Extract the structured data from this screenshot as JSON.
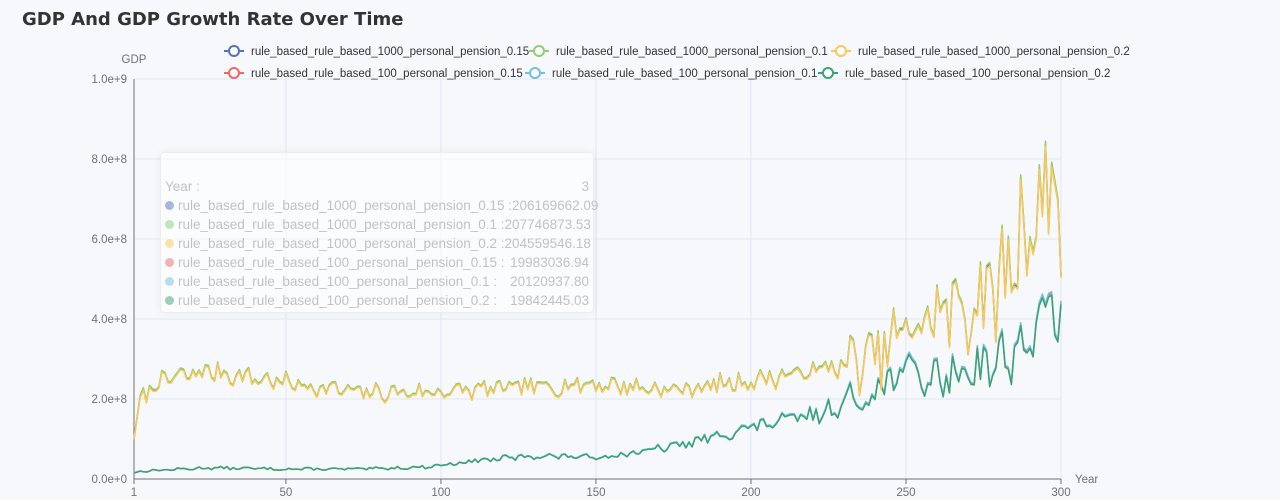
{
  "chart_data": {
    "type": "line",
    "title": "GDP And GDP Growth Rate Over Time",
    "xlabel": "Year",
    "ylabel": "GDP",
    "xlim": [
      1,
      300
    ],
    "ylim": [
      0,
      1000000000
    ],
    "x_ticks": [
      1,
      50,
      100,
      150,
      200,
      250,
      300
    ],
    "y_ticks": [
      "0.0e+0",
      "2.0e+8",
      "4.0e+8",
      "6.0e+8",
      "8.0e+8",
      "1.0e+9"
    ],
    "grid": true,
    "legend_position": "top-right",
    "series": [
      {
        "name": "rule_based_rule_based_1000_personal_pension_0.15",
        "color": "#5470c6",
        "group": "1000",
        "offset": 1.0,
        "keypoints": [
          [
            1,
            100000000
          ],
          [
            3,
            206169662.09
          ],
          [
            10,
            245000000
          ],
          [
            25,
            270000000
          ],
          [
            50,
            240000000
          ],
          [
            75,
            215000000
          ],
          [
            100,
            218000000
          ],
          [
            125,
            228000000
          ],
          [
            150,
            238000000
          ],
          [
            175,
            222000000
          ],
          [
            200,
            245000000
          ],
          [
            220,
            270000000
          ],
          [
            240,
            300000000
          ],
          [
            250,
            370000000
          ],
          [
            260,
            410000000
          ],
          [
            270,
            440000000
          ],
          [
            280,
            470000000
          ],
          [
            287,
            620000000
          ],
          [
            292,
            660000000
          ],
          [
            295,
            700000000
          ],
          [
            298,
            820000000
          ],
          [
            300,
            615000000
          ]
        ]
      },
      {
        "name": "rule_based_rule_based_1000_personal_pension_0.1",
        "color": "#91cc75",
        "group": "1000",
        "offset": 1.008,
        "keypoints": [
          [
            1,
            100000000
          ],
          [
            3,
            207746873.53
          ],
          [
            10,
            245000000
          ],
          [
            25,
            270000000
          ],
          [
            50,
            240000000
          ],
          [
            75,
            215000000
          ],
          [
            100,
            218000000
          ],
          [
            125,
            228000000
          ],
          [
            150,
            238000000
          ],
          [
            175,
            222000000
          ],
          [
            200,
            245000000
          ],
          [
            220,
            270000000
          ],
          [
            240,
            300000000
          ],
          [
            250,
            370000000
          ],
          [
            260,
            410000000
          ],
          [
            270,
            440000000
          ],
          [
            280,
            470000000
          ],
          [
            287,
            620000000
          ],
          [
            292,
            660000000
          ],
          [
            295,
            700000000
          ],
          [
            298,
            820000000
          ],
          [
            300,
            615000000
          ]
        ]
      },
      {
        "name": "rule_based_rule_based_1000_personal_pension_0.2",
        "color": "#fac858",
        "group": "1000",
        "offset": 0.992,
        "keypoints": [
          [
            1,
            100000000
          ],
          [
            3,
            204559546.18
          ],
          [
            10,
            245000000
          ],
          [
            25,
            270000000
          ],
          [
            50,
            240000000
          ],
          [
            75,
            215000000
          ],
          [
            100,
            218000000
          ],
          [
            125,
            228000000
          ],
          [
            150,
            238000000
          ],
          [
            175,
            222000000
          ],
          [
            200,
            245000000
          ],
          [
            220,
            270000000
          ],
          [
            240,
            300000000
          ],
          [
            250,
            370000000
          ],
          [
            260,
            410000000
          ],
          [
            270,
            440000000
          ],
          [
            280,
            470000000
          ],
          [
            287,
            620000000
          ],
          [
            292,
            660000000
          ],
          [
            295,
            700000000
          ],
          [
            298,
            820000000
          ],
          [
            300,
            615000000
          ]
        ]
      },
      {
        "name": "rule_based_rule_based_100_personal_pension_0.15",
        "color": "#ee6666",
        "group": "100",
        "offset": 1.0,
        "keypoints": [
          [
            1,
            15000000
          ],
          [
            3,
            19983036.94
          ],
          [
            25,
            28000000
          ],
          [
            50,
            25000000
          ],
          [
            75,
            25000000
          ],
          [
            95,
            30000000
          ],
          [
            110,
            45000000
          ],
          [
            130,
            58000000
          ],
          [
            150,
            55000000
          ],
          [
            165,
            68000000
          ],
          [
            180,
            90000000
          ],
          [
            200,
            130000000
          ],
          [
            220,
            160000000
          ],
          [
            235,
            200000000
          ],
          [
            240,
            230000000
          ],
          [
            250,
            270000000
          ],
          [
            260,
            250000000
          ],
          [
            270,
            280000000
          ],
          [
            280,
            300000000
          ],
          [
            290,
            350000000
          ],
          [
            295,
            400000000
          ],
          [
            300,
            470000000
          ]
        ]
      },
      {
        "name": "rule_based_rule_based_100_personal_pension_0.1",
        "color": "#73c0de",
        "group": "100",
        "offset": 1.01,
        "keypoints": [
          [
            1,
            15000000
          ],
          [
            3,
            20120937.8
          ],
          [
            25,
            28000000
          ],
          [
            50,
            25000000
          ],
          [
            75,
            25000000
          ],
          [
            95,
            30000000
          ],
          [
            110,
            45000000
          ],
          [
            130,
            58000000
          ],
          [
            150,
            55000000
          ],
          [
            165,
            68000000
          ],
          [
            180,
            90000000
          ],
          [
            200,
            130000000
          ],
          [
            220,
            160000000
          ],
          [
            235,
            200000000
          ],
          [
            240,
            230000000
          ],
          [
            250,
            270000000
          ],
          [
            260,
            250000000
          ],
          [
            270,
            280000000
          ],
          [
            280,
            300000000
          ],
          [
            290,
            350000000
          ],
          [
            295,
            400000000
          ],
          [
            300,
            470000000
          ]
        ]
      },
      {
        "name": "rule_based_rule_based_100_personal_pension_0.2",
        "color": "#3ba272",
        "group": "100",
        "offset": 0.99,
        "keypoints": [
          [
            1,
            15000000
          ],
          [
            3,
            19842445.03
          ],
          [
            25,
            28000000
          ],
          [
            50,
            25000000
          ],
          [
            75,
            25000000
          ],
          [
            95,
            30000000
          ],
          [
            110,
            45000000
          ],
          [
            130,
            58000000
          ],
          [
            150,
            55000000
          ],
          [
            165,
            68000000
          ],
          [
            180,
            90000000
          ],
          [
            200,
            130000000
          ],
          [
            220,
            160000000
          ],
          [
            235,
            200000000
          ],
          [
            240,
            230000000
          ],
          [
            250,
            270000000
          ],
          [
            260,
            250000000
          ],
          [
            270,
            280000000
          ],
          [
            280,
            300000000
          ],
          [
            290,
            350000000
          ],
          [
            295,
            400000000
          ],
          [
            300,
            470000000
          ]
        ]
      }
    ]
  },
  "tooltip": {
    "header_label": "Year :",
    "header_value": "3",
    "rows": [
      {
        "name": "rule_based_rule_based_1000_personal_pension_0.15 :",
        "value": "206169662.09",
        "color": "#5470c6"
      },
      {
        "name": "rule_based_rule_based_1000_personal_pension_0.1 :",
        "value": "207746873.53",
        "color": "#91cc75"
      },
      {
        "name": "rule_based_rule_based_1000_personal_pension_0.2 :",
        "value": "204559546.18",
        "color": "#fac858"
      },
      {
        "name": "rule_based_rule_based_100_personal_pension_0.15 :",
        "value": "19983036.94",
        "color": "#ee6666"
      },
      {
        "name": "rule_based_rule_based_100_personal_pension_0.1 :",
        "value": "20120937.80",
        "color": "#73c0de"
      },
      {
        "name": "rule_based_rule_based_100_personal_pension_0.2 :",
        "value": "19842445.03",
        "color": "#3ba272"
      }
    ]
  }
}
